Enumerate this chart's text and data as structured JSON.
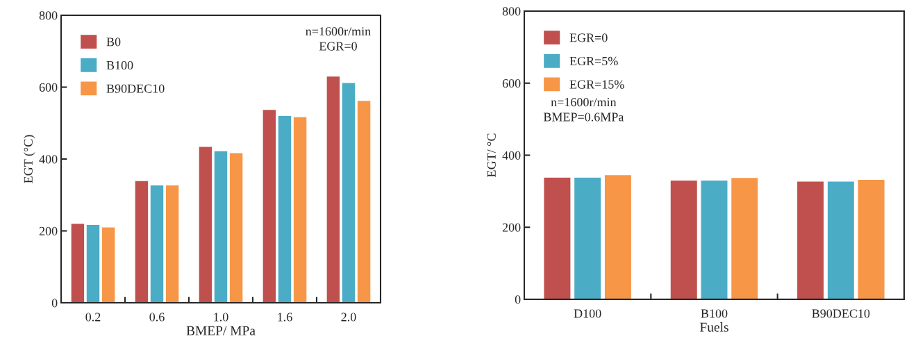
{
  "chart_data": [
    {
      "type": "bar",
      "xlabel": "BMEP/ MPa",
      "ylabel": "EGT (°C)",
      "categories": [
        "0.2",
        "0.6",
        "1.0",
        "1.6",
        "2.0"
      ],
      "series": [
        {
          "name": "B0",
          "color": "#c0504d",
          "values": [
            221,
            340,
            435,
            538,
            631
          ]
        },
        {
          "name": "B100",
          "color": "#4bacc6",
          "values": [
            218,
            328,
            423,
            521,
            613
          ]
        },
        {
          "name": "B90DEC10",
          "color": "#f79646",
          "values": [
            211,
            328,
            418,
            518,
            563
          ]
        }
      ],
      "ylim": [
        0,
        800
      ],
      "yticks": [
        0,
        200,
        400,
        600,
        800
      ],
      "grid": false,
      "legend": "top left",
      "annotations": [
        "n=1600r/min\nEGR=0"
      ]
    },
    {
      "type": "bar",
      "xlabel": "Fuels",
      "ylabel": "EGT/ °C",
      "categories": [
        "D100",
        "B100",
        "B90DEC10"
      ],
      "series": [
        {
          "name": "EGR=0",
          "color": "#c0504d",
          "values": [
            339,
            331,
            328
          ]
        },
        {
          "name": "EGR=5%",
          "color": "#4bacc6",
          "values": [
            339,
            331,
            328
          ]
        },
        {
          "name": "EGR=15%",
          "color": "#f79646",
          "values": [
            346,
            338,
            333
          ]
        }
      ],
      "ylim": [
        0,
        800
      ],
      "yticks": [
        0,
        200,
        400,
        600,
        800
      ],
      "grid": false,
      "legend": "top left",
      "annotations": [
        "n=1600r/min\nBMEP=0.6MPa"
      ]
    }
  ]
}
